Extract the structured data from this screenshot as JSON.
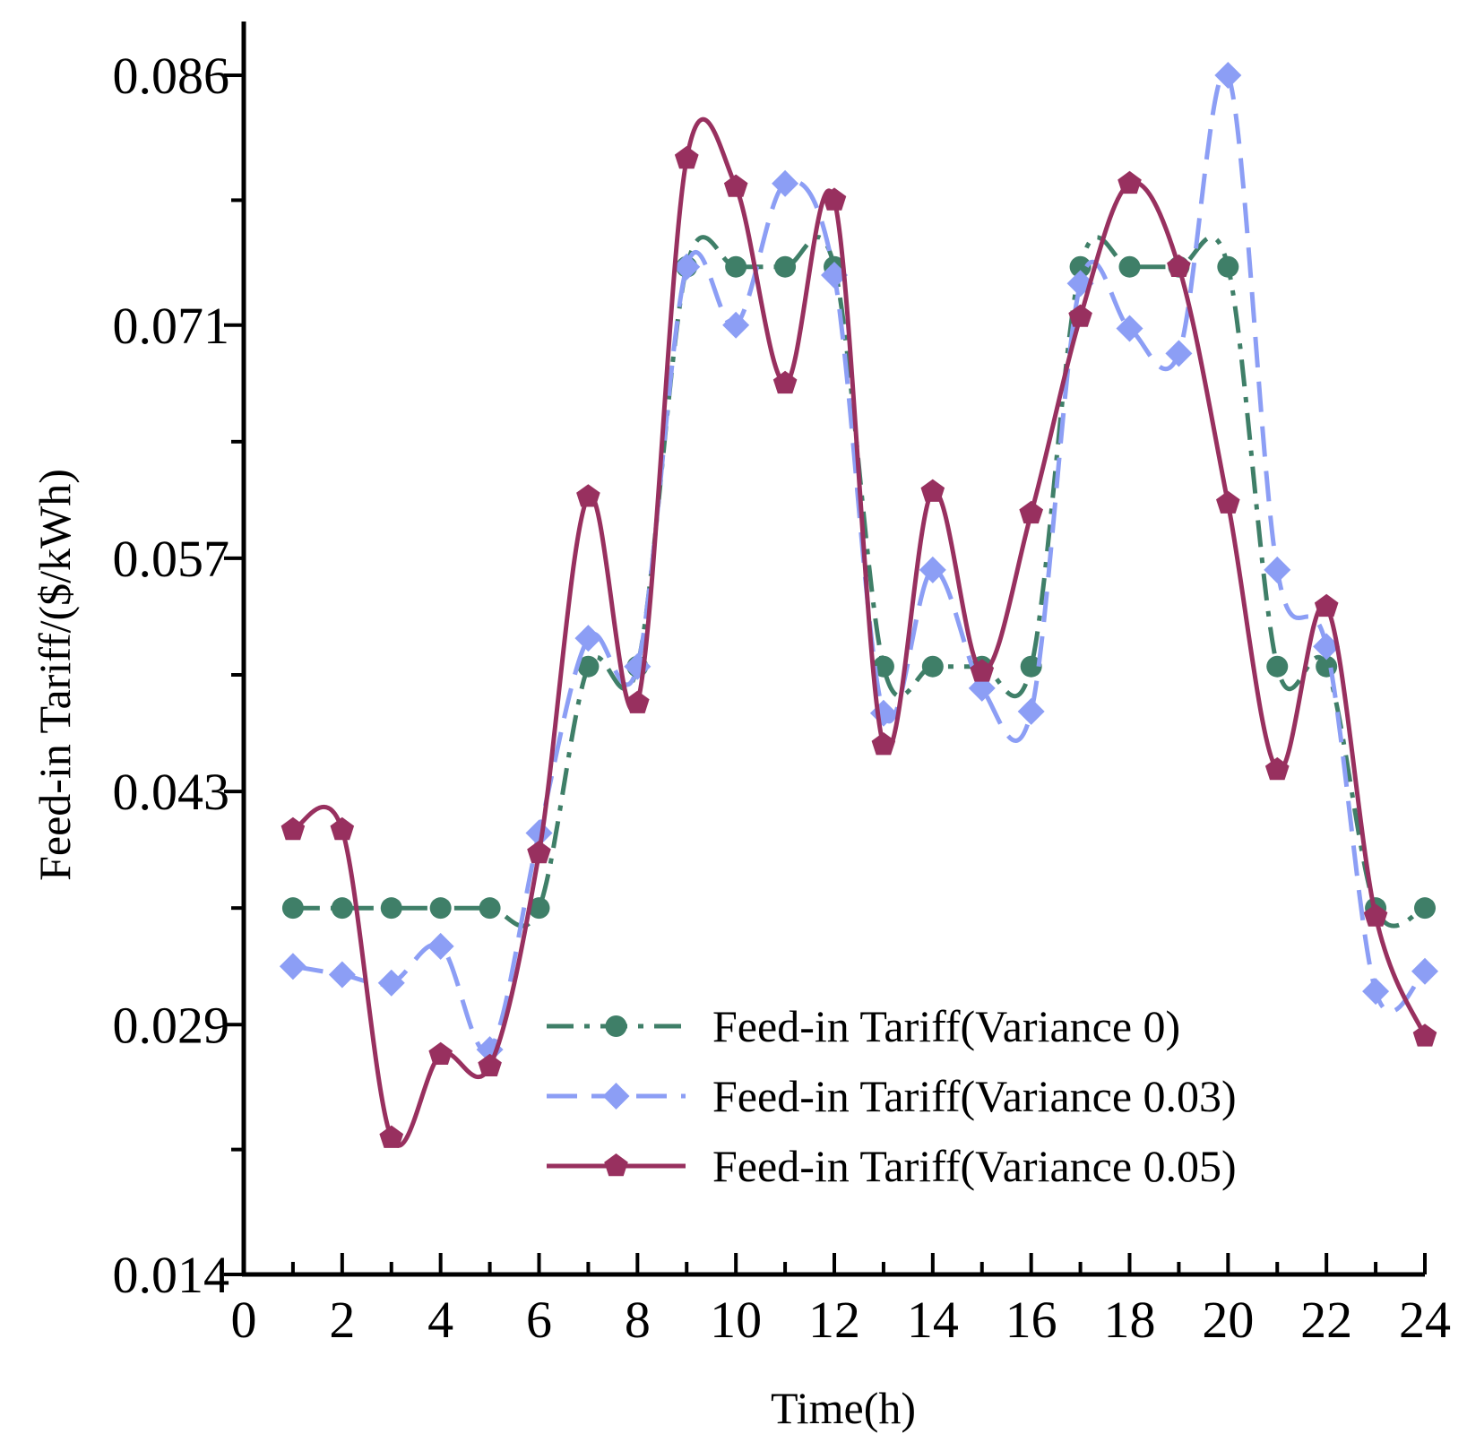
{
  "chart_data": {
    "type": "line",
    "title": "",
    "xlabel": "Time(h)",
    "ylabel": "Feed-in Tariff/($/kWh)",
    "xlim": [
      0,
      24
    ],
    "ylim": [
      0.014,
      0.086
    ],
    "x_ticks": [
      "0",
      "2",
      "4",
      "6",
      "8",
      "10",
      "12",
      "14",
      "16",
      "18",
      "20",
      "22",
      "24"
    ],
    "y_ticks": [
      "0.014",
      "0.029",
      "0.043",
      "0.057",
      "0.071",
      "0.086"
    ],
    "x": [
      1,
      2,
      3,
      4,
      5,
      6,
      7,
      8,
      9,
      10,
      11,
      12,
      13,
      14,
      15,
      16,
      17,
      18,
      19,
      20,
      21,
      22,
      23,
      24
    ],
    "series": [
      {
        "name": "Feed-in Tariff(Variance 0)",
        "color": "#3f7f68",
        "line": "dash-dot",
        "marker": "circle",
        "values": [
          0.036,
          0.036,
          0.036,
          0.036,
          0.036,
          0.036,
          0.0505,
          0.0505,
          0.0745,
          0.0745,
          0.0745,
          0.0745,
          0.0505,
          0.0505,
          0.0505,
          0.0505,
          0.0745,
          0.0745,
          0.0745,
          0.0745,
          0.0505,
          0.0505,
          0.036,
          0.036
        ]
      },
      {
        "name": "Feed-in Tariff(Variance 0.03)",
        "color": "#8c9ef5",
        "line": "dash",
        "marker": "diamond",
        "values": [
          0.0325,
          0.032,
          0.0315,
          0.0337,
          0.0275,
          0.0405,
          0.0522,
          0.0505,
          0.0745,
          0.071,
          0.0795,
          0.074,
          0.0477,
          0.0563,
          0.0492,
          0.0478,
          0.0735,
          0.0708,
          0.0693,
          0.086,
          0.0563,
          0.0517,
          0.031,
          0.0322
        ]
      },
      {
        "name": "Feed-in Tariff(Variance 0.05)",
        "color": "#98305f",
        "line": "solid",
        "marker": "pentagon",
        "values": [
          0.0407,
          0.0407,
          0.0222,
          0.0272,
          0.0265,
          0.0393,
          0.0607,
          0.0483,
          0.081,
          0.0793,
          0.0675,
          0.0785,
          0.0458,
          0.061,
          0.0502,
          0.0597,
          0.0715,
          0.0795,
          0.0745,
          0.0603,
          0.0443,
          0.0541,
          0.0355,
          0.0283
        ]
      }
    ],
    "legend": {
      "position": "bottom-right"
    }
  }
}
